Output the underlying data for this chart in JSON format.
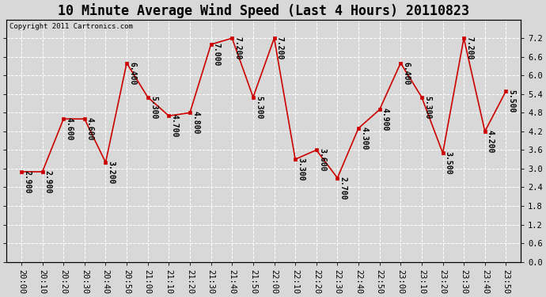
{
  "title": "10 Minute Average Wind Speed (Last 4 Hours) 20110823",
  "copyright": "Copyright 2011 Cartronics.com",
  "x_labels": [
    "20:00",
    "20:10",
    "20:20",
    "20:30",
    "20:40",
    "20:50",
    "21:00",
    "21:10",
    "21:20",
    "21:30",
    "21:40",
    "21:50",
    "22:00",
    "22:10",
    "22:20",
    "22:30",
    "22:40",
    "22:50",
    "23:00",
    "23:10",
    "23:20",
    "23:30",
    "23:40",
    "23:50"
  ],
  "y_values": [
    2.9,
    2.9,
    4.6,
    4.6,
    3.2,
    6.4,
    5.3,
    4.7,
    4.8,
    7.0,
    7.2,
    5.3,
    7.2,
    3.3,
    3.6,
    2.7,
    4.3,
    4.9,
    6.4,
    5.3,
    3.5,
    7.2,
    4.2,
    5.5
  ],
  "annotations": [
    "2.900",
    "2.900",
    "4.600",
    "4.600",
    "3.200",
    "6.400",
    "5.300",
    "4.700",
    "4.800",
    "7.000",
    "7.200",
    "5.300",
    "7.200",
    "3.300",
    "3.600",
    "2.700",
    "4.300",
    "4.900",
    "6.400",
    "5.300",
    "3.500",
    "7.200",
    "4.200",
    "5.500"
  ],
  "line_color": "#cc0000",
  "marker_color": "#cc0000",
  "bg_color": "#d8d8d8",
  "grid_color": "#ffffff",
  "ylim": [
    0.0,
    7.8
  ],
  "yticks": [
    0.0,
    0.6,
    1.2,
    1.8,
    2.4,
    3.0,
    3.6,
    4.2,
    4.8,
    5.4,
    6.0,
    6.6,
    7.2
  ],
  "title_fontsize": 12,
  "annotation_fontsize": 7,
  "tick_fontsize": 7.5,
  "copyright_fontsize": 6.5
}
